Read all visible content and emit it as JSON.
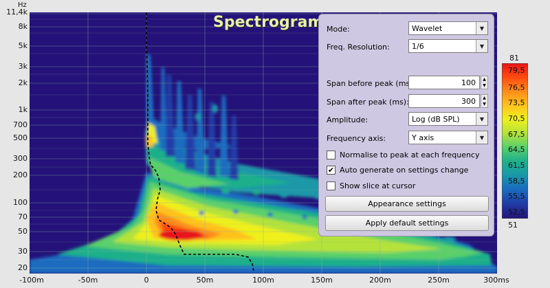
{
  "title": "Spectrogram",
  "y_unit": "Hz",
  "y_ticks": [
    "11,4k",
    "8k",
    "5k",
    "3k",
    "2k",
    "1k",
    "700",
    "500",
    "300",
    "200",
    "100",
    "70",
    "50",
    "30",
    "20"
  ],
  "x_ticks": [
    "-100m",
    "-50m",
    "0",
    "50m",
    "100m",
    "150m",
    "200m",
    "250m",
    "300ms"
  ],
  "panel": {
    "mode_label": "Mode:",
    "mode_value": "Wavelet",
    "freq_res_label": "Freq. Resolution:",
    "freq_res_value": "1/6",
    "span_before_label": "Span before peak (ms):",
    "span_before_value": "100",
    "span_after_label": "Span after peak (ms):",
    "span_after_value": "300",
    "amplitude_label": "Amplitude:",
    "amplitude_value": "Log (dB SPL)",
    "freq_axis_label": "Frequency axis:",
    "freq_axis_value": "Y axis",
    "normalise_label": "Normalise to peak at each frequency",
    "normalise_checked": false,
    "autogen_label": "Auto generate on settings change",
    "autogen_checked": true,
    "slice_label": "Show slice at cursor",
    "slice_checked": false,
    "appearance_button": "Appearance settings",
    "defaults_button": "Apply default settings"
  },
  "colorbar": {
    "max_label": "81",
    "min_label": "51",
    "labels": [
      "79,5",
      "76,5",
      "73,5",
      "70,5",
      "67,5",
      "64,5",
      "61,5",
      "58,5",
      "55,5",
      "52,5"
    ],
    "colors": [
      "#e8141a",
      "#ff4a10",
      "#ff8c1a",
      "#ffc21e",
      "#eef01e",
      "#b4e23a",
      "#5ad06a",
      "#1fb08a",
      "#1a98a8",
      "#1a6cc0",
      "#203ea8",
      "#25127a"
    ]
  },
  "colors": {
    "background": "#24127a",
    "grid": "#8fb0a0",
    "peak_curve": "#000000"
  }
}
